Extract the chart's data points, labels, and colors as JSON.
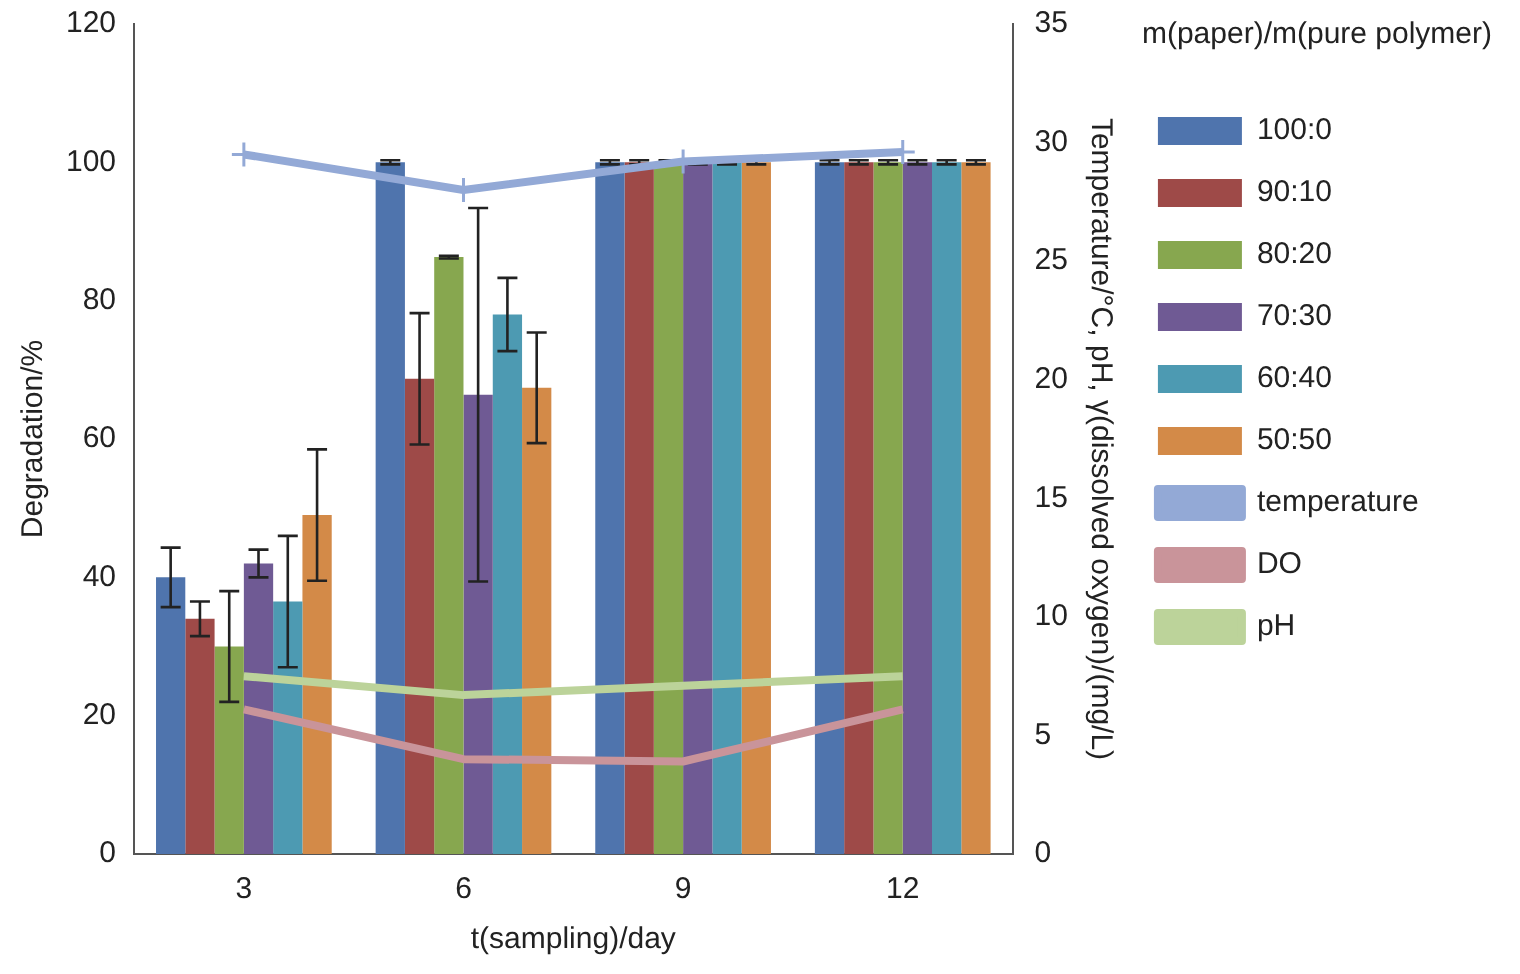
{
  "chart_data": {
    "type": "bar",
    "xlabel": "t(sampling)/day",
    "ylabel": "Degradation/%",
    "y2label": "Temperature/°C, pH, γ(dissolved oxygen)/(mg/L)",
    "legend_title": "m(paper)/m(pure polymer)",
    "legend": "right",
    "grid": false,
    "categories": [
      "3",
      "6",
      "9",
      "12"
    ],
    "ylim": [
      0,
      120
    ],
    "yticks": [
      0,
      20,
      40,
      60,
      80,
      100,
      120
    ],
    "y2lim": [
      0,
      35
    ],
    "y2ticks": [
      0,
      5,
      10,
      15,
      20,
      25,
      30,
      35
    ],
    "series": [
      {
        "name": "100:0",
        "color": "#4f74ad",
        "values": [
          40,
          100,
          100,
          100
        ],
        "errors": [
          4.3,
          0.3,
          0.3,
          0.3
        ]
      },
      {
        "name": "90:10",
        "color": "#9e4a48",
        "values": [
          34,
          68.7,
          100,
          100
        ],
        "errors": [
          2.5,
          9.5,
          0.3,
          0.3
        ]
      },
      {
        "name": "80:20",
        "color": "#87a74f",
        "values": [
          30,
          86.3,
          100,
          100
        ],
        "errors": [
          8,
          0.2,
          0.3,
          0.3
        ]
      },
      {
        "name": "70:30",
        "color": "#6f5a94",
        "values": [
          42,
          66.4,
          100,
          100
        ],
        "errors": [
          2,
          27,
          0.3,
          0.3
        ]
      },
      {
        "name": "60:40",
        "color": "#4d9ab2",
        "values": [
          36.5,
          78,
          100,
          100
        ],
        "errors": [
          9.5,
          5.3,
          0.3,
          0.3
        ]
      },
      {
        "name": "50:50",
        "color": "#d38a48",
        "values": [
          49,
          67.4,
          100,
          100
        ],
        "errors": [
          9.5,
          8,
          0.3,
          0.3
        ]
      },
      {
        "name": "temperature",
        "type": "line",
        "axis": "y2",
        "marker": "cross",
        "color": "#93a9d6",
        "values": [
          29.5,
          28,
          29.2,
          29.6
        ]
      },
      {
        "name": "DO",
        "type": "line",
        "axis": "y2",
        "marker": "none",
        "color": "#c9949a",
        "values": [
          6.1,
          4,
          3.9,
          6.1
        ]
      },
      {
        "name": "pH",
        "type": "line",
        "axis": "y2",
        "marker": "none",
        "color": "#bcd39a",
        "values": [
          7.5,
          6.7,
          7.1,
          7.5
        ]
      }
    ]
  }
}
